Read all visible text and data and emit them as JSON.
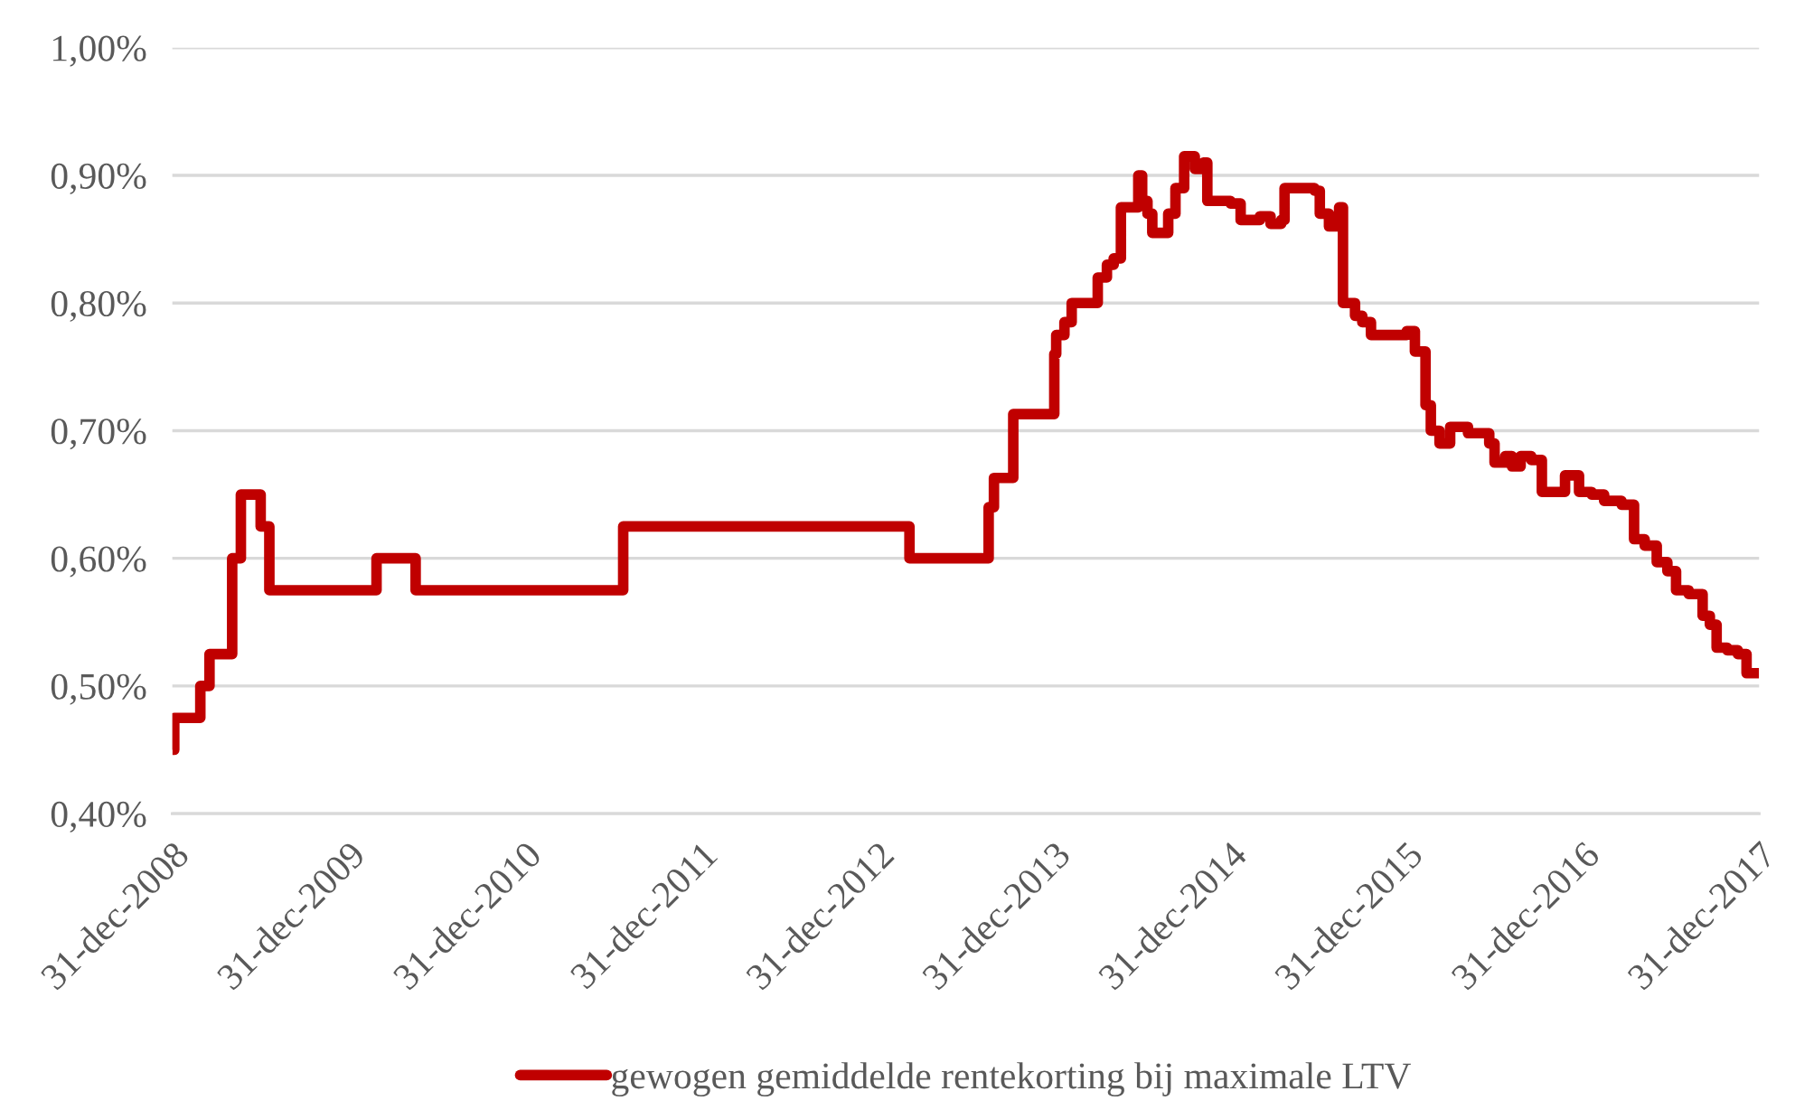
{
  "chart_data": {
    "type": "step",
    "x": [
      "2008-12-31",
      "2009-01-04",
      "2009-02-27",
      "2009-03-18",
      "2009-05-04",
      "2009-05-22",
      "2009-07-02",
      "2009-07-20",
      "2010-02-27",
      "2010-05-19",
      "2011-07-23",
      "2013-03-07",
      "2013-08-18",
      "2013-08-29",
      "2013-10-08",
      "2014-01-01",
      "2014-01-05",
      "2014-01-22",
      "2014-02-06",
      "2014-04-01",
      "2014-04-20",
      "2014-05-04",
      "2014-05-19",
      "2014-06-24",
      "2014-07-02",
      "2014-07-13",
      "2014-07-23",
      "2014-08-25",
      "2014-09-09",
      "2014-09-27",
      "2014-10-19",
      "2014-11-06",
      "2014-11-14",
      "2015-01-01",
      "2015-01-22",
      "2015-03-03",
      "2015-03-25",
      "2015-04-16",
      "2015-04-23",
      "2015-06-24",
      "2015-07-05",
      "2015-07-24",
      "2015-08-14",
      "2015-08-22",
      "2015-09-16",
      "2015-10-01",
      "2015-10-19",
      "2016-01-01",
      "2016-01-18",
      "2016-02-09",
      "2016-02-20",
      "2016-03-09",
      "2016-03-31",
      "2016-05-07",
      "2016-06-20",
      "2016-07-01",
      "2016-07-23",
      "2016-08-06",
      "2016-08-24",
      "2016-09-15",
      "2016-10-07",
      "2016-11-24",
      "2016-12-23",
      "2017-01-18",
      "2017-02-13",
      "2017-03-21",
      "2017-04-16",
      "2017-05-08",
      "2017-06-02",
      "2017-06-24",
      "2017-07-12",
      "2017-08-07",
      "2017-09-05",
      "2017-09-20",
      "2017-10-04",
      "2017-10-26",
      "2017-11-17",
      "2017-12-05",
      "2017-12-31"
    ],
    "series": [
      {
        "name": "gewogen gemiddelde rentekorting bij maximale LTV",
        "color": "#c00000",
        "values": [
          0.45,
          0.475,
          0.5,
          0.525,
          0.6,
          0.65,
          0.625,
          0.575,
          0.6,
          0.575,
          0.625,
          0.6,
          0.64,
          0.663,
          0.713,
          0.76,
          0.775,
          0.785,
          0.8,
          0.82,
          0.83,
          0.835,
          0.875,
          0.9,
          0.88,
          0.87,
          0.855,
          0.87,
          0.89,
          0.915,
          0.905,
          0.91,
          0.88,
          0.878,
          0.865,
          0.868,
          0.862,
          0.865,
          0.89,
          0.888,
          0.87,
          0.86,
          0.875,
          0.8,
          0.79,
          0.785,
          0.775,
          0.778,
          0.762,
          0.72,
          0.7,
          0.69,
          0.703,
          0.698,
          0.69,
          0.675,
          0.68,
          0.672,
          0.68,
          0.677,
          0.652,
          0.665,
          0.652,
          0.65,
          0.645,
          0.642,
          0.615,
          0.61,
          0.597,
          0.59,
          0.575,
          0.572,
          0.555,
          0.548,
          0.53,
          0.528,
          0.525,
          0.51,
          0.51
        ]
      }
    ],
    "xlim": [
      "2008-12-31",
      "2017-12-31"
    ],
    "xticks": [
      {
        "value": "2008-12-31",
        "label": "31-dec-2008"
      },
      {
        "value": "2009-12-31",
        "label": "31-dec-2009"
      },
      {
        "value": "2010-12-31",
        "label": "31-dec-2010"
      },
      {
        "value": "2011-12-31",
        "label": "31-dec-2011"
      },
      {
        "value": "2012-12-31",
        "label": "31-dec-2012"
      },
      {
        "value": "2013-12-31",
        "label": "31-dec-2013"
      },
      {
        "value": "2014-12-31",
        "label": "31-dec-2014"
      },
      {
        "value": "2015-12-31",
        "label": "31-dec-2015"
      },
      {
        "value": "2016-12-31",
        "label": "31-dec-2016"
      },
      {
        "value": "2017-12-31",
        "label": "31-dec-2017"
      }
    ],
    "ylim": [
      0.4,
      1.0
    ],
    "yticks": [
      {
        "value": 0.4,
        "label": "0,40%"
      },
      {
        "value": 0.5,
        "label": "0,50%"
      },
      {
        "value": 0.6,
        "label": "0,60%"
      },
      {
        "value": 0.7,
        "label": "0,70%"
      },
      {
        "value": 0.8,
        "label": "0,80%"
      },
      {
        "value": 0.9,
        "label": "0,90%"
      },
      {
        "value": 1.0,
        "label": "1,00%"
      }
    ],
    "grid": "y",
    "legend": "bottom",
    "line_style": "solid"
  }
}
